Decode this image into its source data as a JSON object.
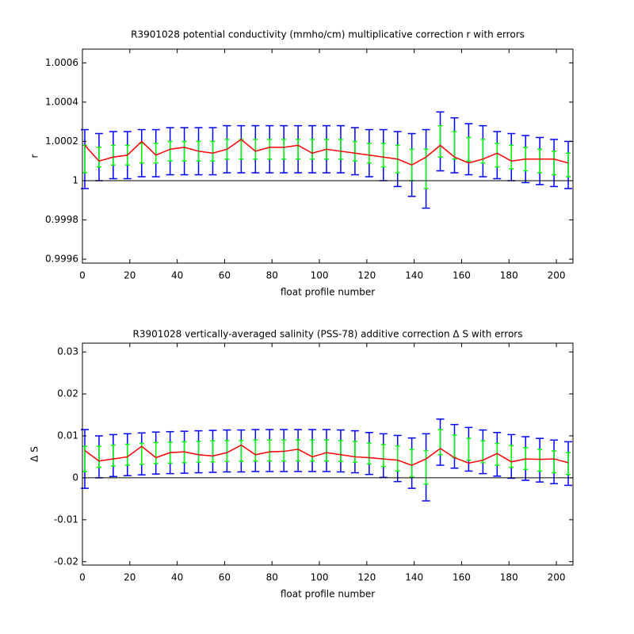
{
  "chart_data": [
    {
      "type": "errorbar",
      "title": "R3901028 potential conductivity (mmho/cm) multiplicative correction r with errors",
      "x_label": "float profile number",
      "y_label": "r",
      "xlim": [
        0,
        207
      ],
      "xticks": [
        0,
        20,
        40,
        60,
        80,
        100,
        120,
        140,
        160,
        180,
        200
      ],
      "ylim": [
        0.99958,
        1.00067
      ],
      "yticks": [
        0.9996,
        0.9998,
        1,
        1.0002,
        1.0004,
        1.0006
      ],
      "reference_line": 1,
      "x": [
        1,
        7,
        13,
        19,
        25,
        31,
        37,
        43,
        49,
        55,
        61,
        67,
        73,
        79,
        85,
        91,
        97,
        103,
        109,
        115,
        121,
        127,
        133,
        139,
        145,
        151,
        157,
        163,
        169,
        175,
        181,
        187,
        193,
        199,
        205
      ],
      "series": [
        {
          "color": "#0000ff",
          "values": [
            1.00011,
            1.00012,
            1.00013,
            1.00013,
            1.00014,
            1.00014,
            1.00015,
            1.00015,
            1.00015,
            1.00015,
            1.00016,
            1.00016,
            1.00016,
            1.00016,
            1.00016,
            1.00016,
            1.00016,
            1.00016,
            1.00016,
            1.00015,
            1.00014,
            1.00013,
            1.00011,
            1.00008,
            1.00006,
            1.0002,
            1.00018,
            1.00016,
            1.00015,
            1.00013,
            1.00012,
            1.00011,
            1.0001,
            1.00009,
            1.00008
          ],
          "errors": [
            0.00015,
            0.00012,
            0.00012,
            0.00012,
            0.00012,
            0.00012,
            0.00012,
            0.00012,
            0.00012,
            0.00012,
            0.00012,
            0.00012,
            0.00012,
            0.00012,
            0.00012,
            0.00012,
            0.00012,
            0.00012,
            0.00012,
            0.00012,
            0.00012,
            0.00013,
            0.00014,
            0.00016,
            0.0002,
            0.00015,
            0.00014,
            0.00013,
            0.00013,
            0.00012,
            0.00012,
            0.00012,
            0.00012,
            0.00012,
            0.00012
          ]
        },
        {
          "color": "#00ff00",
          "values": [
            1.00011,
            1.00012,
            1.00013,
            1.00013,
            1.00014,
            1.00014,
            1.00015,
            1.00015,
            1.00015,
            1.00015,
            1.00016,
            1.00016,
            1.00016,
            1.00016,
            1.00016,
            1.00016,
            1.00016,
            1.00016,
            1.00016,
            1.00015,
            1.00014,
            1.00013,
            1.00011,
            1.00008,
            1.00006,
            1.0002,
            1.00018,
            1.00016,
            1.00015,
            1.00013,
            1.00012,
            1.00011,
            1.0001,
            1.00009,
            1.00008
          ],
          "errors": [
            7e-05,
            5e-05,
            5e-05,
            5e-05,
            5e-05,
            5e-05,
            5e-05,
            5e-05,
            5e-05,
            5e-05,
            5e-05,
            5e-05,
            5e-05,
            5e-05,
            5e-05,
            5e-05,
            5e-05,
            5e-05,
            5e-05,
            5e-05,
            5e-05,
            6e-05,
            7e-05,
            8e-05,
            0.0001,
            8e-05,
            7e-05,
            6e-05,
            6e-05,
            6e-05,
            6e-05,
            6e-05,
            6e-05,
            6e-05,
            6e-05
          ]
        },
        {
          "color": "#ff0000",
          "values": [
            1.00018,
            1.0001,
            1.00012,
            1.00013,
            1.0002,
            1.00013,
            1.00016,
            1.00017,
            1.00015,
            1.00014,
            1.00016,
            1.00021,
            1.00015,
            1.00017,
            1.00017,
            1.00018,
            1.00014,
            1.00016,
            1.00015,
            1.00014,
            1.00013,
            1.00012,
            1.00011,
            1.00008,
            1.00012,
            1.00018,
            1.00012,
            1.00009,
            1.00011,
            1.00014,
            1.0001,
            1.00011,
            1.00011,
            1.00011,
            1.00009
          ]
        }
      ]
    },
    {
      "type": "errorbar",
      "title": "R3901028 vertically-averaged salinity (PSS-78) additive correction Δ S with errors",
      "x_label": "float profile number",
      "y_label": "Δ S",
      "xlim": [
        0,
        207
      ],
      "xticks": [
        0,
        20,
        40,
        60,
        80,
        100,
        120,
        140,
        160,
        180,
        200
      ],
      "ylim": [
        -0.0208,
        0.0321
      ],
      "yticks": [
        -0.02,
        -0.01,
        0,
        0.01,
        0.02,
        0.03
      ],
      "reference_line": 0,
      "x": [
        1,
        7,
        13,
        19,
        25,
        31,
        37,
        43,
        49,
        55,
        61,
        67,
        73,
        79,
        85,
        91,
        97,
        103,
        109,
        115,
        121,
        127,
        133,
        139,
        145,
        151,
        157,
        163,
        169,
        175,
        181,
        187,
        193,
        199,
        205
      ],
      "series": [
        {
          "color": "#0000ff",
          "values": [
            0.0045,
            0.005,
            0.0053,
            0.0055,
            0.0057,
            0.0059,
            0.006,
            0.0061,
            0.0062,
            0.0063,
            0.0064,
            0.0064,
            0.0065,
            0.0065,
            0.0065,
            0.0065,
            0.0065,
            0.0065,
            0.0064,
            0.0062,
            0.0058,
            0.0053,
            0.0046,
            0.0035,
            0.0025,
            0.0085,
            0.0075,
            0.0068,
            0.0062,
            0.0056,
            0.0051,
            0.0046,
            0.0042,
            0.0038,
            0.0034
          ],
          "errors": [
            0.007,
            0.005,
            0.005,
            0.005,
            0.005,
            0.005,
            0.005,
            0.005,
            0.005,
            0.005,
            0.005,
            0.005,
            0.005,
            0.005,
            0.005,
            0.005,
            0.005,
            0.005,
            0.005,
            0.005,
            0.005,
            0.0052,
            0.0055,
            0.006,
            0.008,
            0.0055,
            0.0052,
            0.0052,
            0.0052,
            0.0052,
            0.0052,
            0.0052,
            0.0052,
            0.0052,
            0.0052
          ]
        },
        {
          "color": "#00ff00",
          "values": [
            0.0045,
            0.005,
            0.0053,
            0.0055,
            0.0057,
            0.0059,
            0.006,
            0.0061,
            0.0062,
            0.0063,
            0.0064,
            0.0064,
            0.0065,
            0.0065,
            0.0065,
            0.0065,
            0.0065,
            0.0065,
            0.0064,
            0.0062,
            0.0058,
            0.0053,
            0.0046,
            0.0035,
            0.0025,
            0.0085,
            0.0075,
            0.0068,
            0.0062,
            0.0056,
            0.0051,
            0.0046,
            0.0042,
            0.0038,
            0.0034
          ],
          "errors": [
            0.003,
            0.0025,
            0.0025,
            0.0025,
            0.0025,
            0.0025,
            0.0025,
            0.0025,
            0.0025,
            0.0025,
            0.0025,
            0.0025,
            0.0025,
            0.0025,
            0.0025,
            0.0025,
            0.0025,
            0.0025,
            0.0025,
            0.0025,
            0.0025,
            0.0026,
            0.003,
            0.0033,
            0.004,
            0.003,
            0.0027,
            0.0026,
            0.0026,
            0.0026,
            0.0026,
            0.0026,
            0.0026,
            0.0026,
            0.0026
          ]
        },
        {
          "color": "#ff0000",
          "values": [
            0.0065,
            0.004,
            0.0045,
            0.005,
            0.0075,
            0.0048,
            0.006,
            0.0062,
            0.0055,
            0.0052,
            0.006,
            0.0078,
            0.0055,
            0.0062,
            0.0063,
            0.0068,
            0.005,
            0.006,
            0.0055,
            0.005,
            0.0048,
            0.0045,
            0.0042,
            0.003,
            0.0045,
            0.007,
            0.0048,
            0.0035,
            0.0042,
            0.0058,
            0.0038,
            0.0045,
            0.0044,
            0.0045,
            0.0036
          ]
        }
      ]
    }
  ]
}
